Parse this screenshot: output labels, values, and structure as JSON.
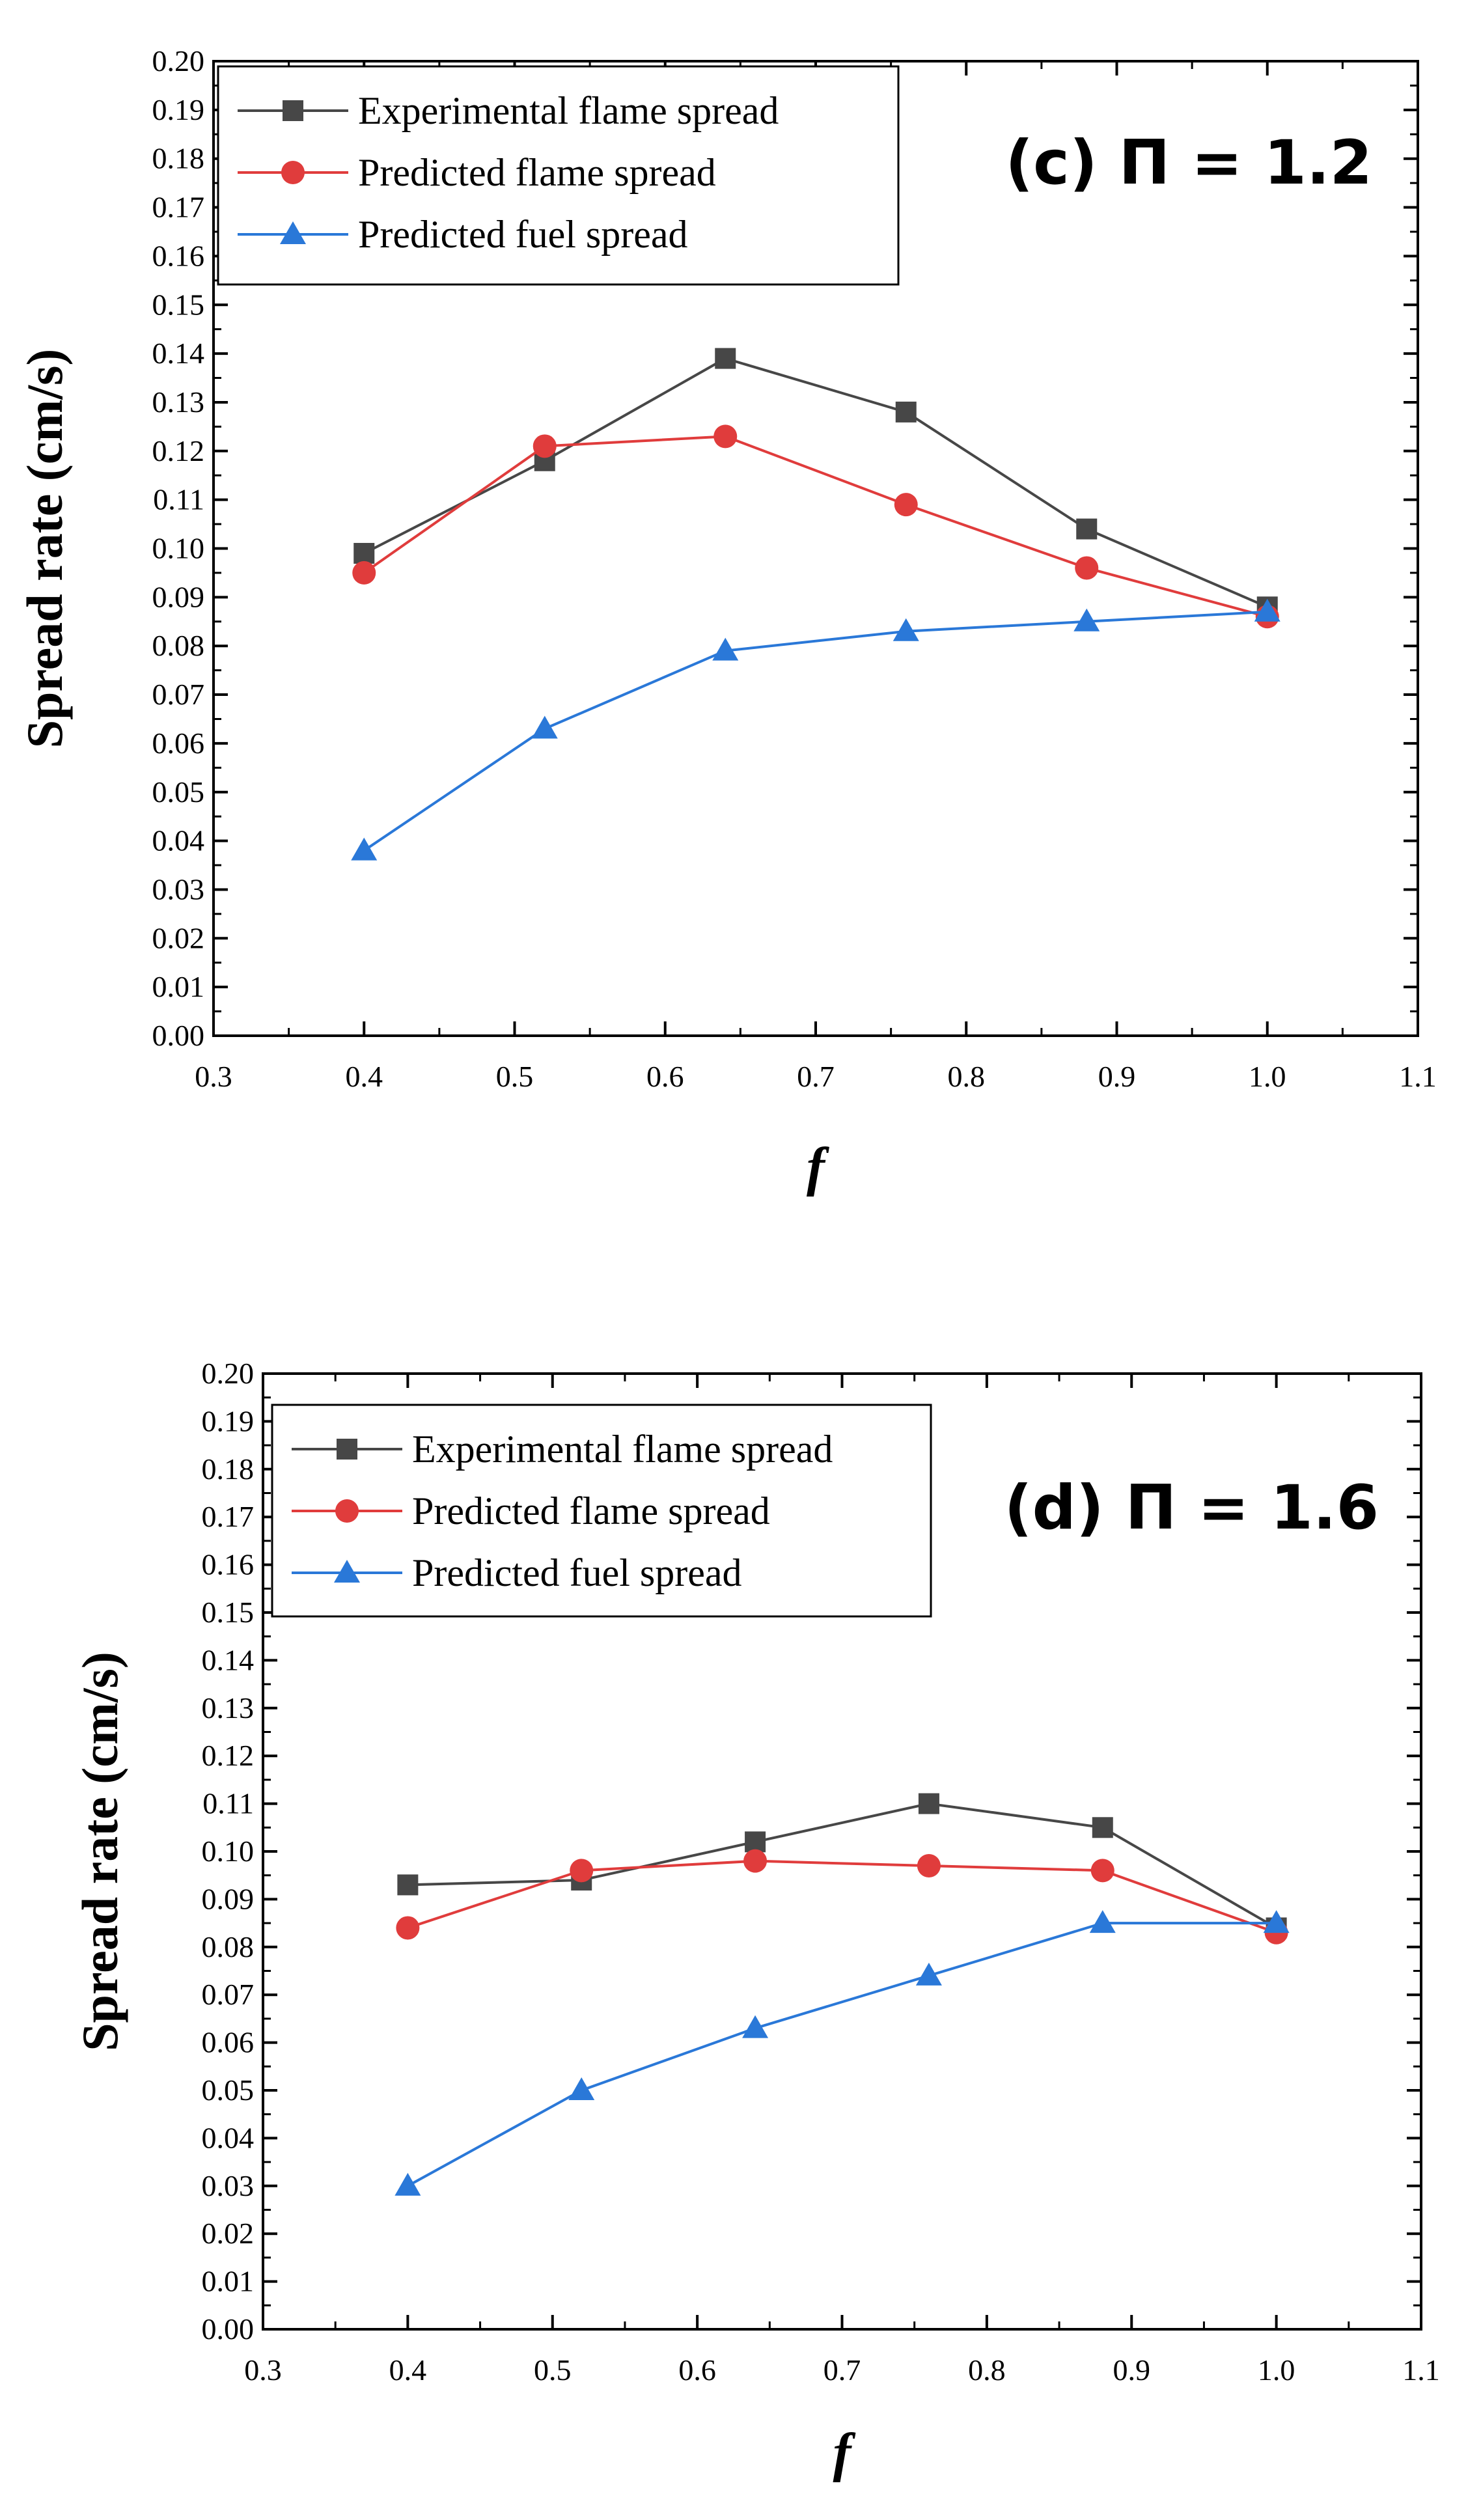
{
  "chart_data": [
    {
      "type": "line",
      "title": "(c) Π = 1.2",
      "xlabel": "f",
      "ylabel": "Spread rate (cm/s)",
      "xlim": [
        0.3,
        1.1
      ],
      "ylim": [
        0.0,
        0.2
      ],
      "x_ticks": [
        "0.3",
        "0.4",
        "0.5",
        "0.6",
        "0.7",
        "0.8",
        "0.9",
        "1.0",
        "1.1"
      ],
      "y_ticks": [
        "0.00",
        "0.01",
        "0.02",
        "0.03",
        "0.04",
        "0.05",
        "0.06",
        "0.07",
        "0.08",
        "0.09",
        "0.10",
        "0.11",
        "0.12",
        "0.13",
        "0.14",
        "0.15",
        "0.16",
        "0.17",
        "0.18",
        "0.19",
        "0.20"
      ],
      "legend_position": "top-left",
      "series": [
        {
          "name": "Experimental flame spread",
          "color": "#474747",
          "marker": "square",
          "x": [
            0.4,
            0.52,
            0.64,
            0.76,
            0.88,
            1.0
          ],
          "y": [
            0.099,
            0.118,
            0.139,
            0.128,
            0.104,
            0.088
          ]
        },
        {
          "name": "Predicted flame spread",
          "color": "#e03c3c",
          "marker": "circle",
          "x": [
            0.4,
            0.52,
            0.64,
            0.76,
            0.88,
            1.0
          ],
          "y": [
            0.095,
            0.121,
            0.123,
            0.109,
            0.096,
            0.086
          ]
        },
        {
          "name": "Predicted fuel spread",
          "color": "#2a78d8",
          "marker": "triangle",
          "x": [
            0.4,
            0.52,
            0.64,
            0.76,
            0.88,
            1.0
          ],
          "y": [
            0.038,
            0.063,
            0.079,
            0.083,
            0.085,
            0.087
          ]
        }
      ]
    },
    {
      "type": "line",
      "title": "(d) Π = 1.6",
      "xlabel": "f",
      "ylabel": "Spread rate (cm/s)",
      "xlim": [
        0.3,
        1.1
      ],
      "ylim": [
        0.0,
        0.2
      ],
      "x_ticks": [
        "0.3",
        "0.4",
        "0.5",
        "0.6",
        "0.7",
        "0.8",
        "0.9",
        "1.0",
        "1.1"
      ],
      "y_ticks": [
        "0.00",
        "0.01",
        "0.02",
        "0.03",
        "0.04",
        "0.05",
        "0.06",
        "0.07",
        "0.08",
        "0.09",
        "0.10",
        "0.11",
        "0.12",
        "0.13",
        "0.14",
        "0.15",
        "0.16",
        "0.17",
        "0.18",
        "0.19",
        "0.20"
      ],
      "legend_position": "top-left",
      "series": [
        {
          "name": "Experimental flame spread",
          "color": "#474747",
          "marker": "square",
          "x": [
            0.4,
            0.52,
            0.64,
            0.76,
            0.88,
            1.0
          ],
          "y": [
            0.093,
            0.094,
            0.102,
            0.11,
            0.105,
            0.084
          ]
        },
        {
          "name": "Predicted flame spread",
          "color": "#e03c3c",
          "marker": "circle",
          "x": [
            0.4,
            0.52,
            0.64,
            0.76,
            0.88,
            1.0
          ],
          "y": [
            0.084,
            0.096,
            0.098,
            0.097,
            0.096,
            0.083
          ]
        },
        {
          "name": "Predicted fuel spread",
          "color": "#2a78d8",
          "marker": "triangle",
          "x": [
            0.4,
            0.52,
            0.64,
            0.76,
            0.88,
            1.0
          ],
          "y": [
            0.03,
            0.05,
            0.063,
            0.074,
            0.085,
            0.085
          ]
        }
      ]
    }
  ]
}
